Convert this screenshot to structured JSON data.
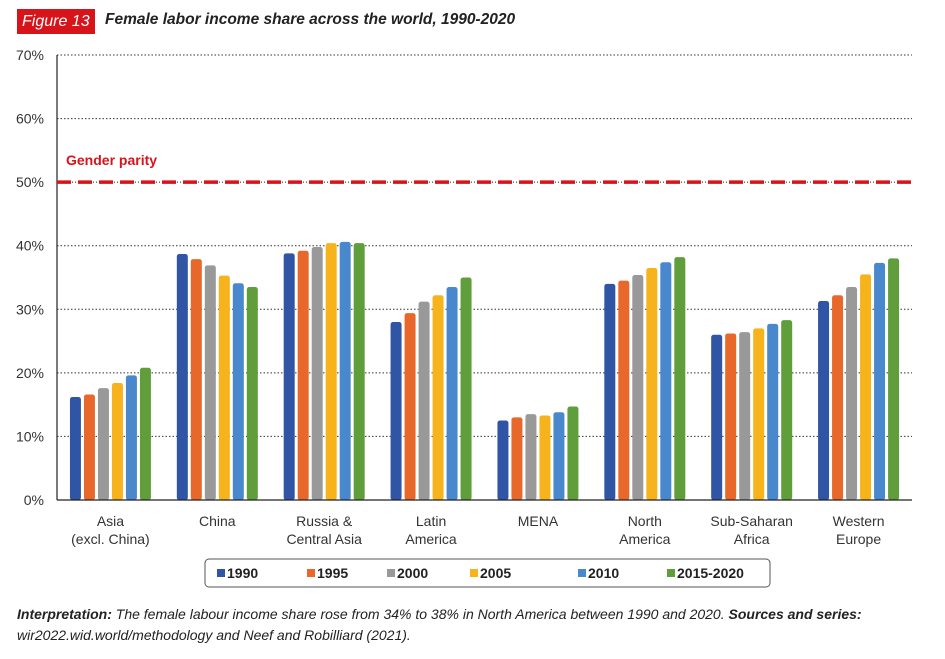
{
  "figure": {
    "badge": "Figure 13",
    "title": "Female labor income share across the world, 1990-2020"
  },
  "chart_data": {
    "type": "bar",
    "title": "Female labor income share across the world, 1990-2020",
    "xlabel": "",
    "ylabel": "",
    "ylim": [
      0,
      70
    ],
    "yticks": [
      0,
      10,
      20,
      30,
      40,
      50,
      60,
      70
    ],
    "ytick_labels": [
      "0%",
      "10%",
      "20%",
      "30%",
      "40%",
      "50%",
      "60%",
      "70%"
    ],
    "grid": true,
    "legend_position": "bottom-center",
    "categories": [
      [
        "Asia",
        "(excl. China)"
      ],
      [
        "China"
      ],
      [
        "Russia &",
        "Central Asia"
      ],
      [
        "Latin",
        "America"
      ],
      [
        "MENA"
      ],
      [
        "North",
        "America"
      ],
      [
        "Sub-Saharan",
        "Africa"
      ],
      [
        "Western",
        "Europe"
      ]
    ],
    "series": [
      {
        "name": "1990",
        "color": "#2f55a4",
        "values": [
          16.2,
          38.7,
          38.8,
          28.0,
          12.5,
          34.0,
          26.0,
          31.3
        ]
      },
      {
        "name": "1995",
        "color": "#e8672a",
        "values": [
          16.6,
          37.9,
          39.2,
          29.4,
          13.0,
          34.5,
          26.2,
          32.2
        ]
      },
      {
        "name": "2000",
        "color": "#999999",
        "values": [
          17.6,
          36.9,
          39.8,
          31.2,
          13.5,
          35.4,
          26.4,
          33.5
        ]
      },
      {
        "name": "2005",
        "color": "#f6b31b",
        "values": [
          18.4,
          35.3,
          40.4,
          32.2,
          13.3,
          36.5,
          27.0,
          35.5
        ]
      },
      {
        "name": "2010",
        "color": "#4a88cd",
        "values": [
          19.6,
          34.1,
          40.6,
          33.5,
          13.8,
          37.4,
          27.7,
          37.3
        ]
      },
      {
        "name": "2015-2020",
        "color": "#5f9e3a",
        "values": [
          20.8,
          33.5,
          40.4,
          35.0,
          14.7,
          38.2,
          28.3,
          38.0
        ]
      }
    ],
    "annotations": [
      {
        "type": "hline",
        "value": 50,
        "label": "Gender parity",
        "color": "#d7141a"
      }
    ]
  },
  "footnote": {
    "interpretation_label": "Interpretation:",
    "interpretation_text": " The female labour income share rose from 34% to 38% in North America between 1990 and 2020. ",
    "sources_label": "Sources and series:",
    "sources_text": " wir2022.wid.world/methodology and Neef and Robilliard (2021)."
  }
}
